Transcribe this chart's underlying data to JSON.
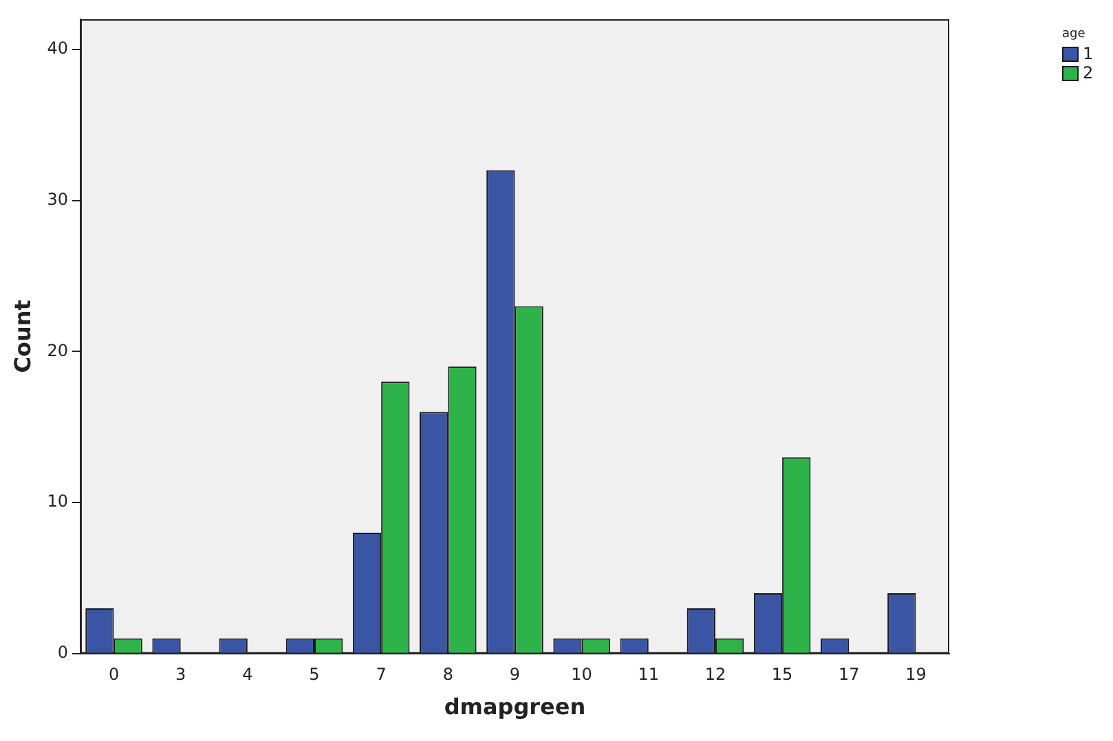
{
  "chart_data": {
    "type": "bar",
    "xlabel": "dmapgreen",
    "ylabel": "Count",
    "legend_title": "age",
    "categories": [
      "0",
      "3",
      "4",
      "5",
      "7",
      "8",
      "9",
      "10",
      "11",
      "12",
      "15",
      "17",
      "19"
    ],
    "series": [
      {
        "name": "1",
        "color": "#3a55a4",
        "values": [
          3,
          1,
          1,
          1,
          8,
          16,
          32,
          1,
          1,
          3,
          4,
          1,
          4
        ]
      },
      {
        "name": "2",
        "color": "#2db34a",
        "values": [
          1,
          0,
          0,
          1,
          18,
          19,
          23,
          1,
          0,
          1,
          13,
          0,
          0
        ]
      }
    ],
    "ylim": [
      0,
      42
    ],
    "yticks": [
      0,
      10,
      20,
      30,
      40
    ],
    "grid": false,
    "legend": "top right"
  }
}
